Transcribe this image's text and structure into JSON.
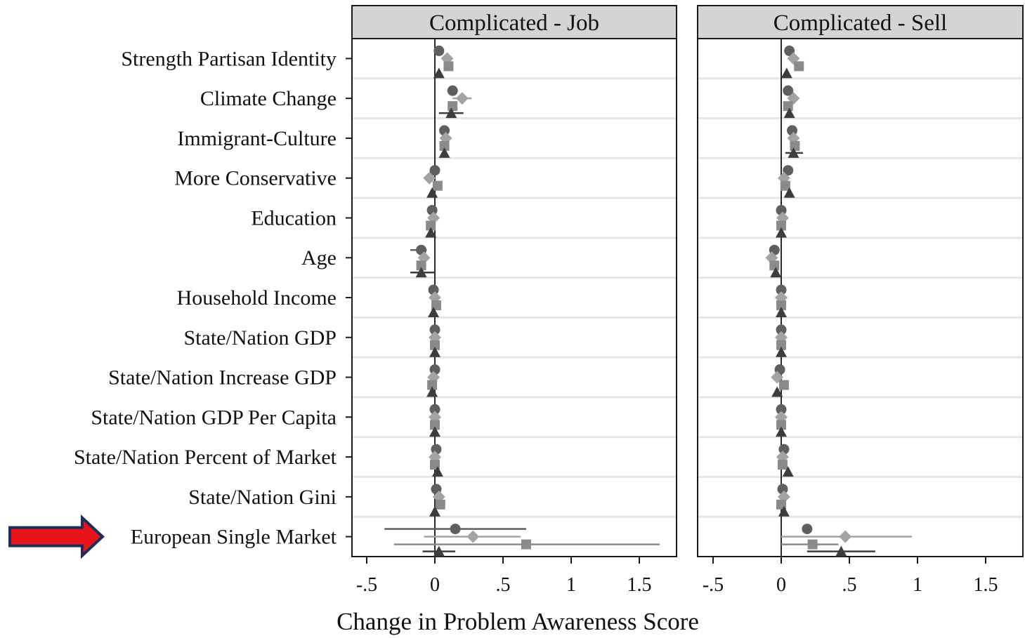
{
  "chart_data": {
    "type": "coefficient-plot",
    "xlabel": "Change in Problem Awareness Score",
    "xlim": [
      -0.6,
      1.75
    ],
    "xticks": [
      -0.5,
      0,
      0.5,
      1,
      1.5
    ],
    "xtick_labels": [
      "-.5",
      "0",
      ".5",
      "1",
      "1.5"
    ],
    "grid": "horizontal",
    "categories": [
      "Strength Partisan Identity",
      "Climate Change",
      "Immigrant-Culture",
      "More Conservative",
      "Education",
      "Age",
      "Household Income",
      "State/Nation GDP",
      "State/Nation Increase GDP",
      "State/Nation GDP Per Capita",
      "State/Nation Percent of Market",
      "State/Nation Gini",
      "European Single Market"
    ],
    "highlight": {
      "category": "European Single Market",
      "marker": "red-arrow-icon",
      "color": "#e8141c",
      "outline": "#1f2d5a"
    },
    "marker_styles": [
      {
        "shape": "circle",
        "color": "#5f5f5f"
      },
      {
        "shape": "diamond",
        "color": "#a3a3a3"
      },
      {
        "shape": "square",
        "color": "#8a8a8a"
      },
      {
        "shape": "triangle",
        "color": "#3d3d3d"
      }
    ],
    "panels": [
      {
        "title": "Complicated - Job",
        "series": [
          {
            "values": [
              0.03,
              0.13,
              0.07,
              0.0,
              -0.02,
              -0.1,
              -0.01,
              0.0,
              0.0,
              0.0,
              0.01,
              0.01,
              0.15
            ],
            "ci_low": [
              null,
              null,
              null,
              null,
              null,
              -0.18,
              null,
              null,
              null,
              null,
              null,
              null,
              -0.37
            ],
            "ci_high": [
              null,
              null,
              null,
              null,
              null,
              -0.06,
              null,
              null,
              null,
              null,
              null,
              null,
              0.67
            ]
          },
          {
            "values": [
              0.09,
              0.2,
              0.08,
              -0.04,
              -0.01,
              -0.08,
              0.0,
              0.0,
              -0.01,
              0.0,
              0.0,
              0.03,
              0.28
            ],
            "ci_low": [
              null,
              0.13,
              null,
              null,
              null,
              null,
              null,
              null,
              null,
              null,
              null,
              null,
              -0.08
            ],
            "ci_high": [
              null,
              0.27,
              null,
              null,
              null,
              null,
              null,
              null,
              null,
              null,
              null,
              null,
              0.63
            ]
          },
          {
            "values": [
              0.1,
              0.13,
              0.07,
              0.02,
              -0.03,
              -0.1,
              0.01,
              0.0,
              -0.02,
              0.0,
              0.0,
              0.04,
              0.67
            ],
            "ci_low": [
              null,
              null,
              null,
              null,
              null,
              null,
              null,
              null,
              null,
              null,
              null,
              null,
              -0.3
            ],
            "ci_high": [
              null,
              null,
              null,
              null,
              null,
              null,
              null,
              null,
              null,
              null,
              null,
              null,
              1.65
            ]
          },
          {
            "values": [
              0.03,
              0.12,
              0.07,
              -0.02,
              -0.03,
              -0.1,
              -0.01,
              0.0,
              -0.02,
              0.0,
              0.02,
              0.0,
              0.03
            ],
            "ci_low": [
              null,
              0.03,
              null,
              null,
              null,
              -0.18,
              null,
              null,
              null,
              null,
              null,
              null,
              -0.09
            ],
            "ci_high": [
              null,
              0.21,
              null,
              null,
              null,
              0.0,
              null,
              null,
              null,
              null,
              null,
              null,
              0.15
            ]
          }
        ]
      },
      {
        "title": "Complicated - Sell",
        "series": [
          {
            "values": [
              0.06,
              0.05,
              0.08,
              0.05,
              0.0,
              -0.05,
              0.0,
              0.0,
              -0.01,
              0.0,
              0.02,
              0.01,
              0.19
            ],
            "ci_low": [
              null,
              null,
              null,
              null,
              null,
              null,
              null,
              null,
              null,
              null,
              null,
              null,
              null
            ],
            "ci_high": [
              null,
              null,
              null,
              null,
              null,
              null,
              null,
              null,
              null,
              null,
              null,
              null,
              null
            ]
          },
          {
            "values": [
              0.09,
              0.09,
              0.09,
              0.02,
              0.01,
              -0.07,
              0.0,
              0.0,
              -0.03,
              0.0,
              0.01,
              0.02,
              0.47
            ],
            "ci_low": [
              null,
              null,
              null,
              null,
              null,
              null,
              null,
              null,
              null,
              null,
              null,
              null,
              0.0
            ],
            "ci_high": [
              null,
              null,
              null,
              null,
              null,
              null,
              null,
              null,
              null,
              null,
              null,
              null,
              0.96
            ]
          },
          {
            "values": [
              0.13,
              0.05,
              0.1,
              0.03,
              0.0,
              -0.05,
              0.0,
              0.0,
              0.02,
              0.0,
              0.01,
              0.0,
              0.23
            ],
            "ci_low": [
              null,
              null,
              null,
              null,
              null,
              null,
              null,
              null,
              null,
              null,
              null,
              null,
              0.0
            ],
            "ci_high": [
              null,
              null,
              null,
              null,
              null,
              null,
              null,
              null,
              null,
              null,
              null,
              null,
              0.42
            ]
          },
          {
            "values": [
              0.04,
              0.06,
              0.09,
              0.06,
              0.0,
              -0.04,
              0.0,
              0.0,
              -0.03,
              0.0,
              0.05,
              0.02,
              0.44
            ],
            "ci_low": [
              null,
              null,
              0.03,
              null,
              null,
              null,
              null,
              null,
              null,
              null,
              null,
              null,
              0.19
            ],
            "ci_high": [
              null,
              null,
              0.16,
              null,
              null,
              null,
              null,
              null,
              null,
              null,
              null,
              null,
              0.69
            ]
          }
        ]
      }
    ]
  }
}
